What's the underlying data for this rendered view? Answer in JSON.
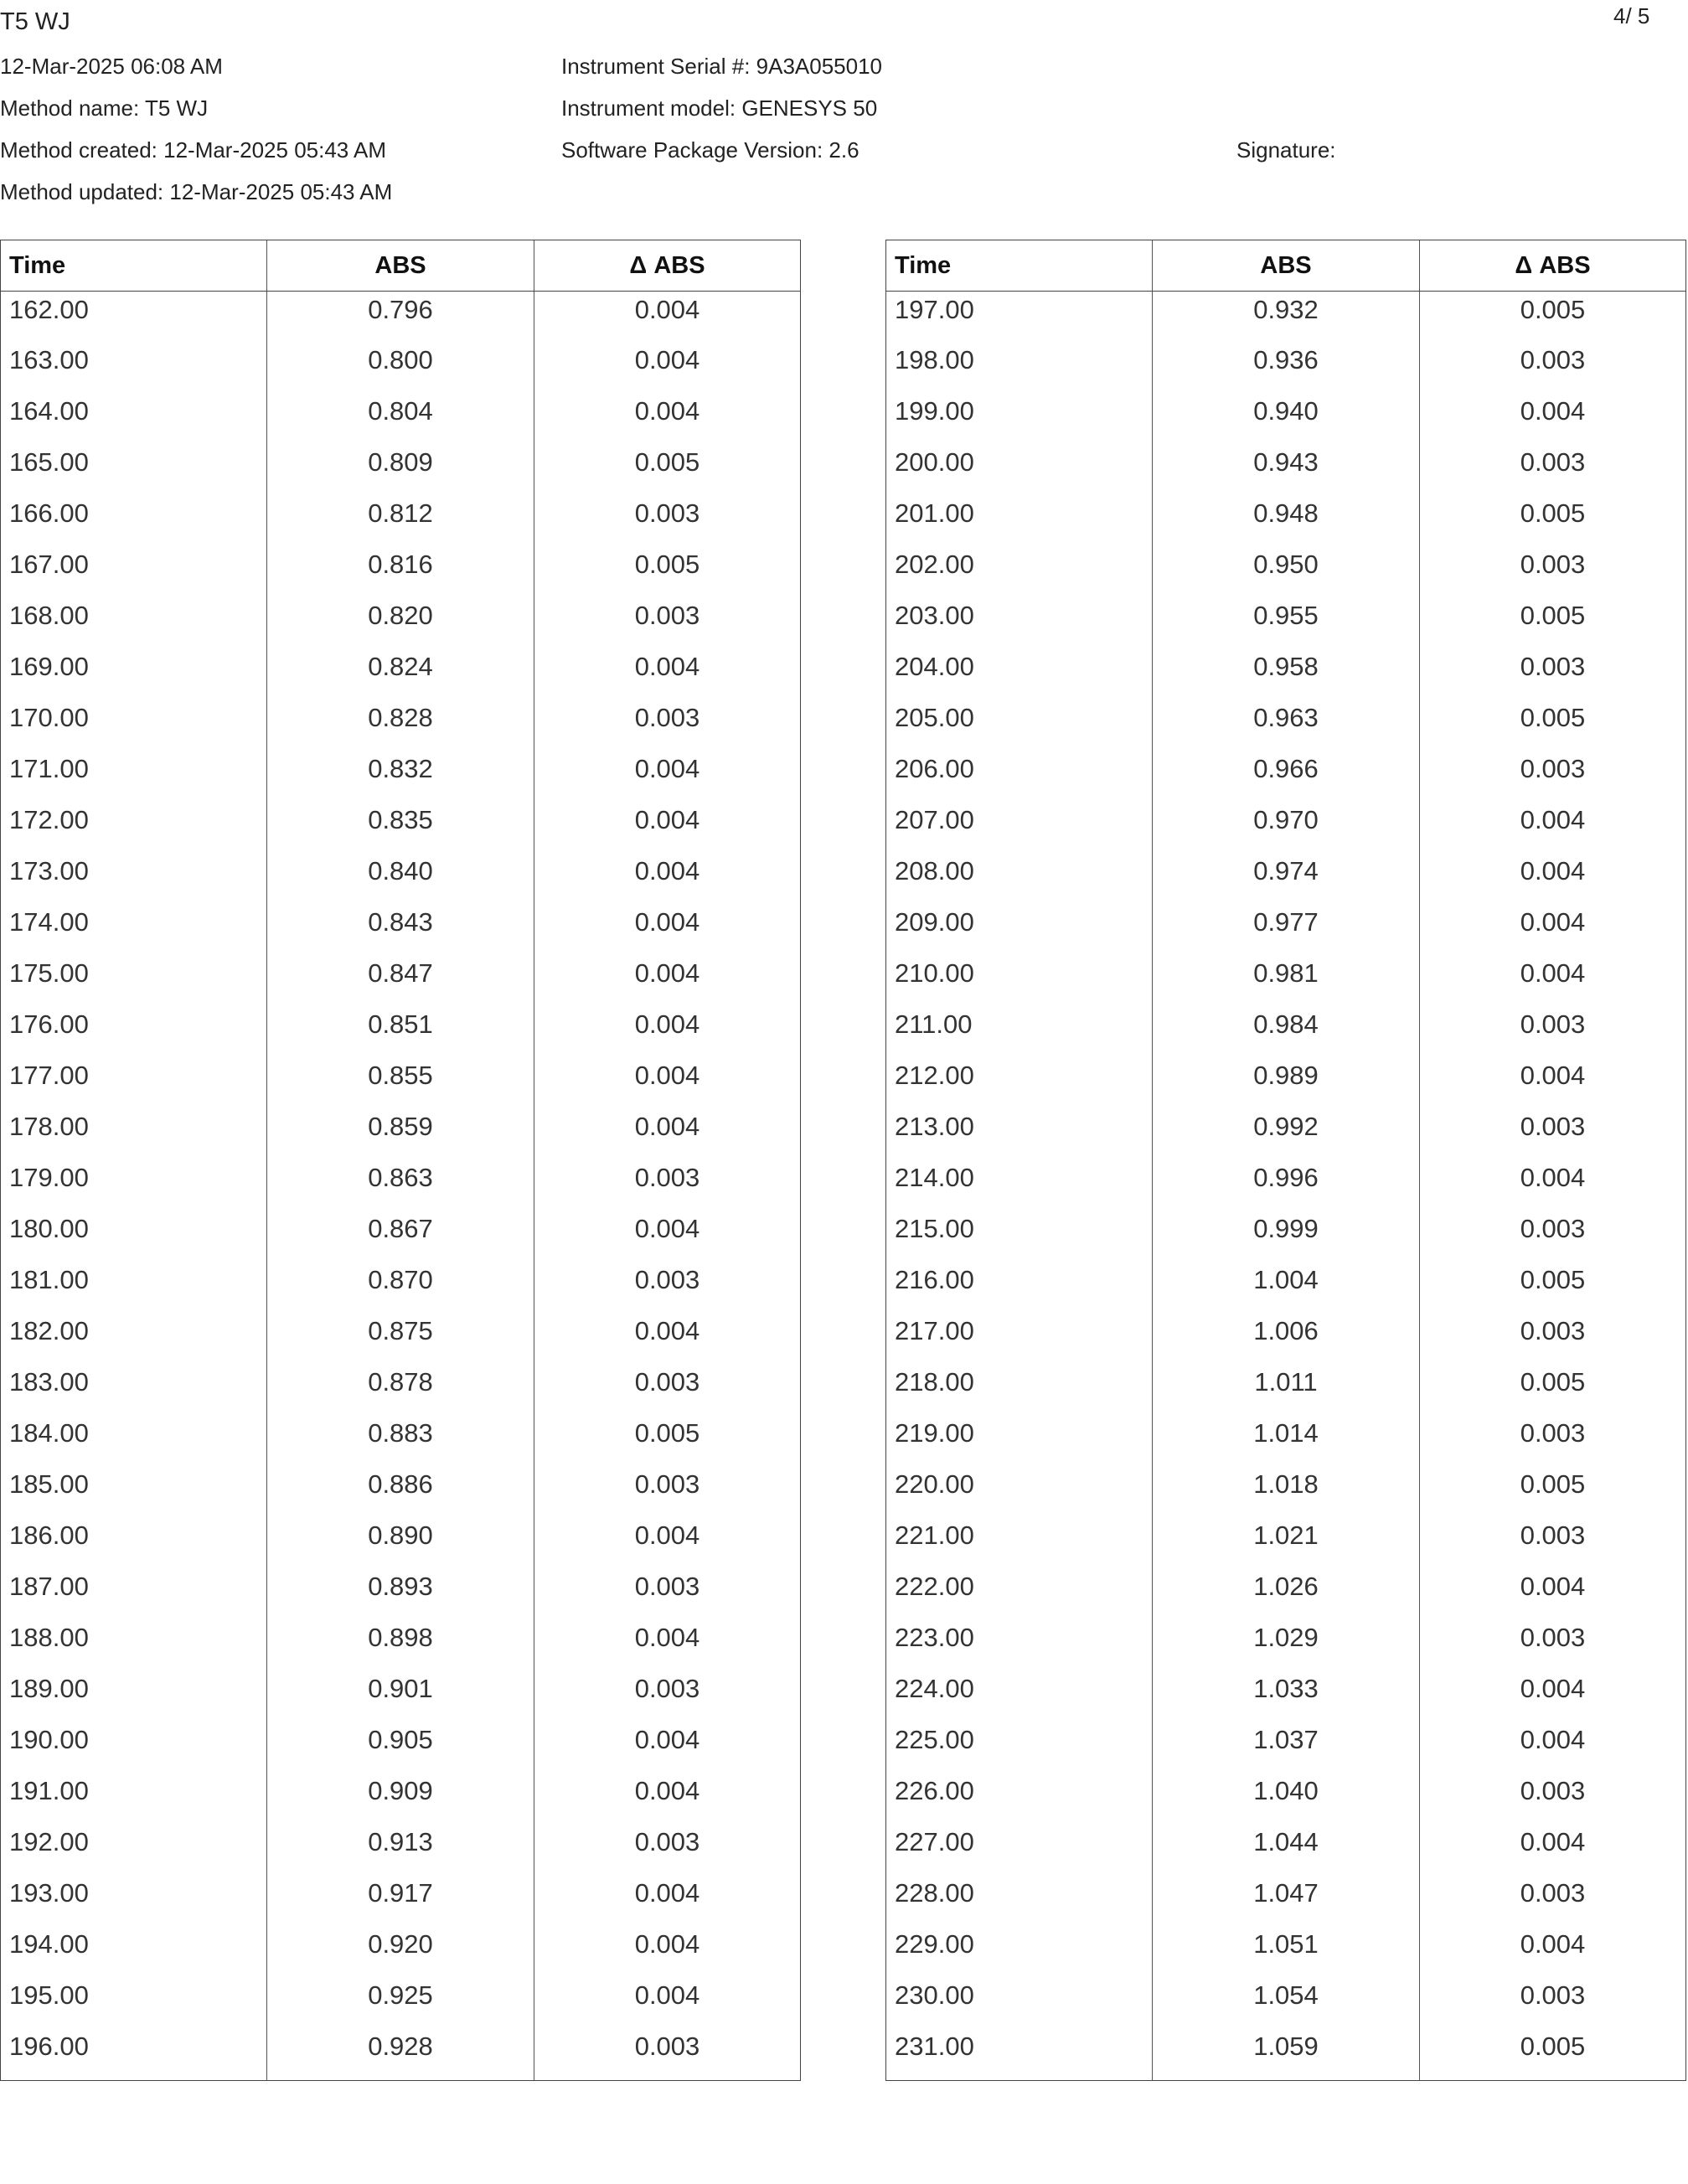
{
  "document": {
    "title": "T5 WJ",
    "page_number": "4/ 5",
    "printed_at": "12-Mar-2025 06:08 AM",
    "method_name": "Method name: T5 WJ",
    "method_created": "Method created: 12-Mar-2025 05:43 AM",
    "method_updated": "Method updated: 12-Mar-2025 05:43 AM",
    "instrument_serial": "Instrument Serial #: 9A3A055010",
    "instrument_model": "Instrument model: GENESYS 50",
    "software_version": "Software Package Version: 2.6",
    "signature_label": "Signature:"
  },
  "tables": [
    {
      "headers": [
        "Time",
        "ABS",
        "Δ ABS"
      ],
      "rows": [
        [
          "162.00",
          "0.796",
          "0.004"
        ],
        [
          "163.00",
          "0.800",
          "0.004"
        ],
        [
          "164.00",
          "0.804",
          "0.004"
        ],
        [
          "165.00",
          "0.809",
          "0.005"
        ],
        [
          "166.00",
          "0.812",
          "0.003"
        ],
        [
          "167.00",
          "0.816",
          "0.005"
        ],
        [
          "168.00",
          "0.820",
          "0.003"
        ],
        [
          "169.00",
          "0.824",
          "0.004"
        ],
        [
          "170.00",
          "0.828",
          "0.003"
        ],
        [
          "171.00",
          "0.832",
          "0.004"
        ],
        [
          "172.00",
          "0.835",
          "0.004"
        ],
        [
          "173.00",
          "0.840",
          "0.004"
        ],
        [
          "174.00",
          "0.843",
          "0.004"
        ],
        [
          "175.00",
          "0.847",
          "0.004"
        ],
        [
          "176.00",
          "0.851",
          "0.004"
        ],
        [
          "177.00",
          "0.855",
          "0.004"
        ],
        [
          "178.00",
          "0.859",
          "0.004"
        ],
        [
          "179.00",
          "0.863",
          "0.003"
        ],
        [
          "180.00",
          "0.867",
          "0.004"
        ],
        [
          "181.00",
          "0.870",
          "0.003"
        ],
        [
          "182.00",
          "0.875",
          "0.004"
        ],
        [
          "183.00",
          "0.878",
          "0.003"
        ],
        [
          "184.00",
          "0.883",
          "0.005"
        ],
        [
          "185.00",
          "0.886",
          "0.003"
        ],
        [
          "186.00",
          "0.890",
          "0.004"
        ],
        [
          "187.00",
          "0.893",
          "0.003"
        ],
        [
          "188.00",
          "0.898",
          "0.004"
        ],
        [
          "189.00",
          "0.901",
          "0.003"
        ],
        [
          "190.00",
          "0.905",
          "0.004"
        ],
        [
          "191.00",
          "0.909",
          "0.004"
        ],
        [
          "192.00",
          "0.913",
          "0.003"
        ],
        [
          "193.00",
          "0.917",
          "0.004"
        ],
        [
          "194.00",
          "0.920",
          "0.004"
        ],
        [
          "195.00",
          "0.925",
          "0.004"
        ],
        [
          "196.00",
          "0.928",
          "0.003"
        ]
      ]
    },
    {
      "headers": [
        "Time",
        "ABS",
        "Δ ABS"
      ],
      "rows": [
        [
          "197.00",
          "0.932",
          "0.005"
        ],
        [
          "198.00",
          "0.936",
          "0.003"
        ],
        [
          "199.00",
          "0.940",
          "0.004"
        ],
        [
          "200.00",
          "0.943",
          "0.003"
        ],
        [
          "201.00",
          "0.948",
          "0.005"
        ],
        [
          "202.00",
          "0.950",
          "0.003"
        ],
        [
          "203.00",
          "0.955",
          "0.005"
        ],
        [
          "204.00",
          "0.958",
          "0.003"
        ],
        [
          "205.00",
          "0.963",
          "0.005"
        ],
        [
          "206.00",
          "0.966",
          "0.003"
        ],
        [
          "207.00",
          "0.970",
          "0.004"
        ],
        [
          "208.00",
          "0.974",
          "0.004"
        ],
        [
          "209.00",
          "0.977",
          "0.004"
        ],
        [
          "210.00",
          "0.981",
          "0.004"
        ],
        [
          "211.00",
          "0.984",
          "0.003"
        ],
        [
          "212.00",
          "0.989",
          "0.004"
        ],
        [
          "213.00",
          "0.992",
          "0.003"
        ],
        [
          "214.00",
          "0.996",
          "0.004"
        ],
        [
          "215.00",
          "0.999",
          "0.003"
        ],
        [
          "216.00",
          "1.004",
          "0.005"
        ],
        [
          "217.00",
          "1.006",
          "0.003"
        ],
        [
          "218.00",
          "1.011",
          "0.005"
        ],
        [
          "219.00",
          "1.014",
          "0.003"
        ],
        [
          "220.00",
          "1.018",
          "0.005"
        ],
        [
          "221.00",
          "1.021",
          "0.003"
        ],
        [
          "222.00",
          "1.026",
          "0.004"
        ],
        [
          "223.00",
          "1.029",
          "0.003"
        ],
        [
          "224.00",
          "1.033",
          "0.004"
        ],
        [
          "225.00",
          "1.037",
          "0.004"
        ],
        [
          "226.00",
          "1.040",
          "0.003"
        ],
        [
          "227.00",
          "1.044",
          "0.004"
        ],
        [
          "228.00",
          "1.047",
          "0.003"
        ],
        [
          "229.00",
          "1.051",
          "0.004"
        ],
        [
          "230.00",
          "1.054",
          "0.003"
        ],
        [
          "231.00",
          "1.059",
          "0.005"
        ]
      ]
    }
  ]
}
